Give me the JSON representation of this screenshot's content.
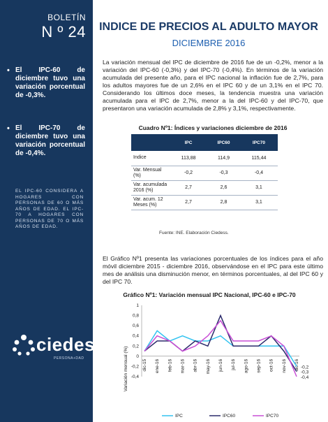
{
  "sidebar": {
    "bulletin_word": "BOLETÍN",
    "bulletin_number": "N º 24",
    "bullets": [
      "El IPC-60 de diciembre tuvo una variación porcentual de -0,3%.",
      "El IPC-70 de diciembre tuvo una variación porcentual de -0,4%."
    ],
    "note": "EL IPC-60 CONSIDERA A HOGARES CON PERSONAS DE 60 O MÁS AÑOS DE EDAD. EL IPC-70 A HOGARES CON PERSONAS DE 70 O MÁS AÑOS DE EDAD.",
    "logo_text": "ciedess",
    "logo_sub": "PERSONA+DAD"
  },
  "header": {
    "title": "INDICE DE PRECIOS AL ADULTO MAYOR",
    "subtitle": "DICIEMBRE 2016"
  },
  "paragraph1": "La variación mensual del IPC de diciembre de 2016 fue de un -0,2%, menor a la variación del IPC-60 (-0,3%) y del IPC-70 (-0,4%). En términos de la variación acumulada del presente año, para el IPC nacional la inflación fue de 2,7%, para los adultos mayores fue de un 2,6% en el IPC 60 y de un 3,1% en el IPC 70. Considerando los últimos doce meses, la tendencia muestra una variación acumulada para el IPC de 2,7%, menor a la del IPC-60 y del IPC-70, que presentaron una variación acumulada de 2,8% y 3,1%, respectivamente.",
  "table": {
    "title": "Cuadro Nº1: Índices y variaciones diciembre de 2016",
    "headers": [
      "",
      "IPC",
      "IPC60",
      "IPC70"
    ],
    "rows": [
      [
        "Indice",
        "113,88",
        "114,9",
        "115,44"
      ],
      [
        "Var. Mensual (%)",
        "-0,2",
        "-0,3",
        "-0,4"
      ],
      [
        "Var. acumulada 2016 (%)",
        "2,7",
        "2,6",
        "3,1"
      ],
      [
        "Var. acum. 12 Meses (%)",
        "2,7",
        "2,8",
        "3,1"
      ]
    ],
    "source": "Fuente: INE. Elaboración Ciedess."
  },
  "paragraph2": "El Gráfico Nº1 presenta las variaciones porcentuales de los índices para el año móvil diciembre 2015 - diciembre 2016, observándose en el IPC para este último mes de análisis una disminución menor, en términos porcentuales, al del IPC 60 y del IPC 70.",
  "chart_data": {
    "type": "line",
    "title": "Gráfico Nº1: Variación mensual IPC Nacional, IPC-60 e IPC-70",
    "xlabel": "",
    "ylabel": "Variación mensual (%)",
    "ylim": [
      -0.4,
      1.0
    ],
    "yticks": [
      "-0,4",
      "-0,2",
      "0",
      "0,2",
      "0,4",
      "0,6",
      "0,8",
      "1"
    ],
    "categories": [
      "dic-15",
      "ene-16",
      "feb-16",
      "mar-16",
      "abr-16",
      "may-16",
      "jun-16",
      "jul-16",
      "ago-16",
      "sep-16",
      "oct-16",
      "nov-16",
      "dic-16"
    ],
    "series": [
      {
        "name": "IPC",
        "color": "#33c3f0",
        "values": [
          0.1,
          0.5,
          0.3,
          0.4,
          0.3,
          0.3,
          0.4,
          0.2,
          0.2,
          0.2,
          0.2,
          0.2,
          -0.2
        ]
      },
      {
        "name": "IPC60",
        "color": "#2b2a6b",
        "values": [
          0.1,
          0.3,
          0.3,
          0.1,
          0.3,
          0.2,
          0.8,
          0.2,
          0.2,
          0.2,
          0.4,
          0.1,
          -0.3
        ]
      },
      {
        "name": "IPC70",
        "color": "#c94fd6",
        "values": [
          0.1,
          0.4,
          0.3,
          0.1,
          0.2,
          0.4,
          0.7,
          0.3,
          0.3,
          0.3,
          0.4,
          0.2,
          -0.4
        ]
      }
    ],
    "end_labels": [
      "-0,2",
      "-0,3",
      "-0,4"
    ],
    "legend": "bottom",
    "grid": false
  }
}
